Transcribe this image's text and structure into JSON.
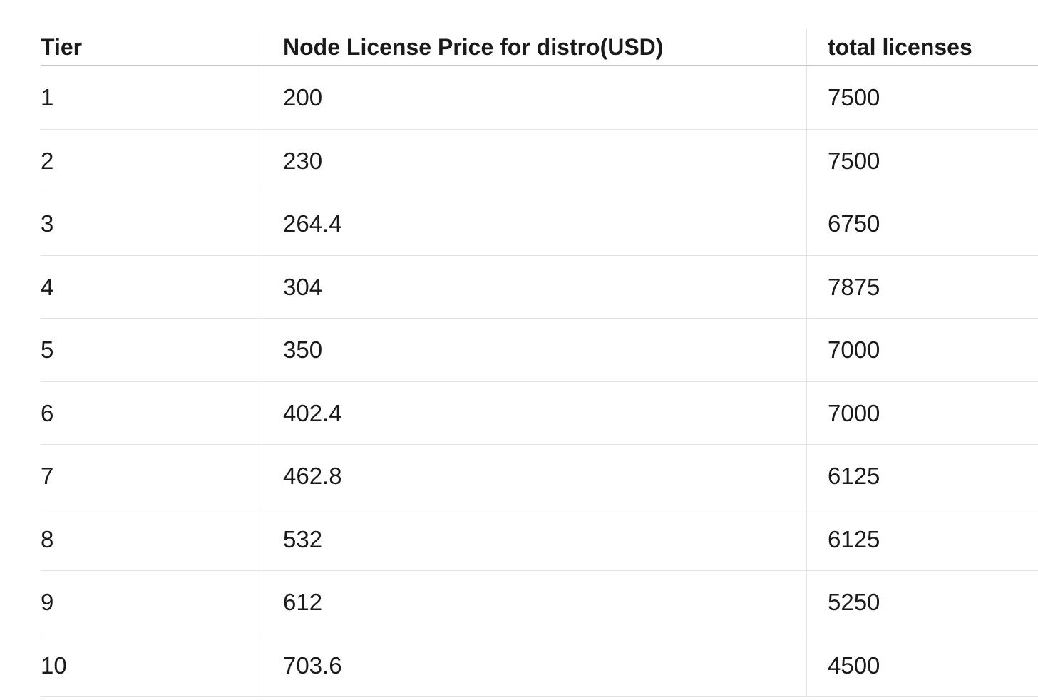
{
  "page": {
    "background_color": "#ffffff",
    "text_color": "#1a1a1a",
    "header_border_color": "#c5c5c5",
    "row_border_color": "#e3e3e3"
  },
  "table": {
    "columns": [
      {
        "label": "Tier"
      },
      {
        "label": "Node License Price for distro(USD)"
      },
      {
        "label": "total licenses"
      }
    ],
    "rows": [
      [
        "1",
        "200",
        "7500"
      ],
      [
        "2",
        "230",
        "7500"
      ],
      [
        "3",
        "264.4",
        "6750"
      ],
      [
        "4",
        "304",
        "7875"
      ],
      [
        "5",
        "350",
        "7000"
      ],
      [
        "6",
        "402.4",
        "7000"
      ],
      [
        "7",
        "462.8",
        "6125"
      ],
      [
        "8",
        "532",
        "6125"
      ],
      [
        "9",
        "612",
        "5250"
      ],
      [
        "10",
        "703.6",
        "4500"
      ]
    ]
  }
}
